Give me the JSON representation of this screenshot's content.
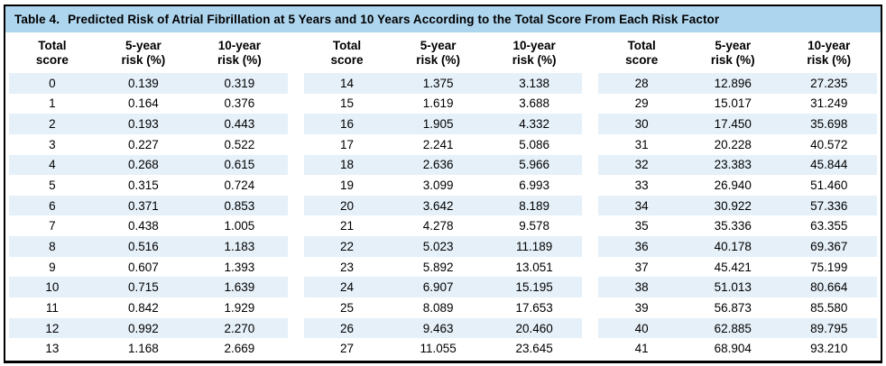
{
  "table": {
    "label": "Table 4.",
    "title": "Predicted Risk of Atrial Fibrillation at 5 Years and 10 Years According to the Total Score From Each Risk Factor"
  },
  "columns": {
    "score": "Total\nscore",
    "risk5": "5-year\nrisk (%)",
    "risk10": "10-year\nrisk (%)"
  },
  "colors": {
    "title_bar_bg": "#aed5ee",
    "row_stripe_bg": "#e5f0f9",
    "frame_border": "#000000"
  },
  "groups": [
    {
      "rows": [
        [
          "0",
          "0.139",
          "0.319"
        ],
        [
          "1",
          "0.164",
          "0.376"
        ],
        [
          "2",
          "0.193",
          "0.443"
        ],
        [
          "3",
          "0.227",
          "0.522"
        ],
        [
          "4",
          "0.268",
          "0.615"
        ],
        [
          "5",
          "0.315",
          "0.724"
        ],
        [
          "6",
          "0.371",
          "0.853"
        ],
        [
          "7",
          "0.438",
          "1.005"
        ],
        [
          "8",
          "0.516",
          "1.183"
        ],
        [
          "9",
          "0.607",
          "1.393"
        ],
        [
          "10",
          "0.715",
          "1.639"
        ],
        [
          "11",
          "0.842",
          "1.929"
        ],
        [
          "12",
          "0.992",
          "2.270"
        ],
        [
          "13",
          "1.168",
          "2.669"
        ]
      ]
    },
    {
      "rows": [
        [
          "14",
          "1.375",
          "3.138"
        ],
        [
          "15",
          "1.619",
          "3.688"
        ],
        [
          "16",
          "1.905",
          "4.332"
        ],
        [
          "17",
          "2.241",
          "5.086"
        ],
        [
          "18",
          "2.636",
          "5.966"
        ],
        [
          "19",
          "3.099",
          "6.993"
        ],
        [
          "20",
          "3.642",
          "8.189"
        ],
        [
          "21",
          "4.278",
          "9.578"
        ],
        [
          "22",
          "5.023",
          "11.189"
        ],
        [
          "23",
          "5.892",
          "13.051"
        ],
        [
          "24",
          "6.907",
          "15.195"
        ],
        [
          "25",
          "8.089",
          "17.653"
        ],
        [
          "26",
          "9.463",
          "20.460"
        ],
        [
          "27",
          "11.055",
          "23.645"
        ]
      ]
    },
    {
      "rows": [
        [
          "28",
          "12.896",
          "27.235"
        ],
        [
          "29",
          "15.017",
          "31.249"
        ],
        [
          "30",
          "17.450",
          "35.698"
        ],
        [
          "31",
          "20.228",
          "40.572"
        ],
        [
          "32",
          "23.383",
          "45.844"
        ],
        [
          "33",
          "26.940",
          "51.460"
        ],
        [
          "34",
          "30.922",
          "57.336"
        ],
        [
          "35",
          "35.336",
          "63.355"
        ],
        [
          "36",
          "40.178",
          "69.367"
        ],
        [
          "37",
          "45.421",
          "75.199"
        ],
        [
          "38",
          "51.013",
          "80.664"
        ],
        [
          "39",
          "56.873",
          "85.580"
        ],
        [
          "40",
          "62.885",
          "89.795"
        ],
        [
          "41",
          "68.904",
          "93.210"
        ]
      ]
    }
  ]
}
